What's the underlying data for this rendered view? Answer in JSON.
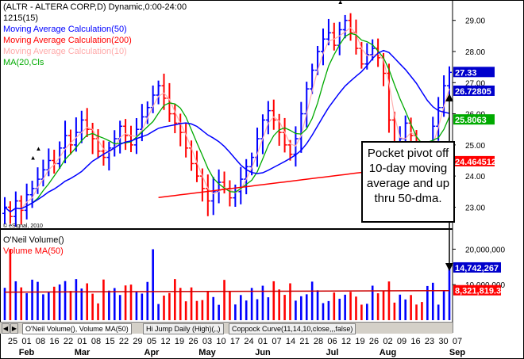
{
  "header": {
    "title": "(ALTR - ALTERA CORP,D) Dynamic,0:00-24:00",
    "interval": "1215(15)",
    "studies": [
      {
        "label": "Moving Average Calculation(50)",
        "color": "#0000ff"
      },
      {
        "label": "Moving Average Calculation(200)",
        "color": "#ff0000"
      },
      {
        "label": "Moving Average Calculation(10)",
        "color": "#ffaaaa"
      },
      {
        "label": "MA(20,Cls",
        "color": "#00aa00"
      }
    ],
    "copyright": "© eSignal, 2010"
  },
  "volume_header": {
    "studies": [
      {
        "label": "O'Neil Volume()",
        "color": "#000000"
      },
      {
        "label": "Volume MA(50)",
        "color": "#ff0000"
      }
    ]
  },
  "annotation": {
    "lines": [
      "Pocket pivot off",
      "10-day moving",
      "average and up",
      "thru 50-dma."
    ]
  },
  "tabs": [
    "O'Neil Volume(), Volume MA(50)",
    "Hi Jump Daily (High)(,,)",
    "Coppock Curve(11,14,10,close,,,false)"
  ],
  "colors": {
    "up": "#0000ff",
    "down": "#ff0000",
    "ma50": "#0000ff",
    "ma200": "#ff0000",
    "ma10": "#ffb0b0",
    "ma20": "#00aa00"
  },
  "chart_data": [
    {
      "type": "line",
      "title": "(ALTR - ALTERA CORP,D) Dynamic,0:00-24:00",
      "price_bar_style": "OHLC",
      "ylim": [
        22.4,
        29.4
      ],
      "y_ticks": [
        22.0,
        23.0,
        24.0,
        25.0,
        26.0,
        27.0,
        28.0,
        29.0
      ],
      "y_tick_labels": [
        "22.00",
        "23.00",
        "24.00",
        "25.00",
        "26.00",
        "27.00",
        "28.00",
        "29.00"
      ],
      "grid": false,
      "x_day_labels": [
        "25",
        "01",
        "08",
        "16",
        "22",
        "01",
        "08",
        "15",
        "22",
        "29",
        "05",
        "12",
        "19",
        "26",
        "03",
        "10",
        "17",
        "24",
        "01",
        "07",
        "14",
        "21",
        "28",
        "06",
        "12",
        "19",
        "26",
        "02",
        "09",
        "16",
        "23",
        "30",
        "07"
      ],
      "x_month_labels": [
        "Feb",
        "Mar",
        "Apr",
        "May",
        "Jun",
        "Jul",
        "Aug",
        "Sep"
      ],
      "close_series": [
        23.0,
        22.7,
        23.2,
        22.9,
        23.4,
        23.6,
        23.9,
        24.2,
        24.5,
        24.4,
        24.9,
        25.3,
        25.0,
        25.4,
        25.8,
        25.5,
        25.2,
        24.8,
        24.6,
        24.9,
        25.2,
        25.6,
        25.3,
        25.0,
        25.5,
        25.9,
        26.2,
        26.6,
        26.9,
        26.5,
        26.0,
        25.7,
        25.4,
        24.9,
        24.4,
        24.0,
        23.6,
        23.2,
        23.5,
        23.8,
        23.6,
        23.3,
        23.5,
        23.9,
        24.3,
        24.6,
        25.2,
        25.8,
        26.1,
        25.8,
        25.4,
        25.0,
        24.7,
        25.2,
        26.0,
        26.8,
        27.4,
        28.0,
        28.4,
        28.6,
        28.2,
        28.7,
        29.0,
        28.6,
        28.1,
        27.6,
        27.9,
        28.1,
        27.8,
        27.3,
        25.8,
        24.7,
        25.2,
        25.7,
        25.3,
        24.9,
        24.5,
        24.9,
        25.6,
        26.2,
        26.9,
        27.33
      ],
      "last_labels": {
        "price": "27.33",
        "ma50": "26.72805",
        "ma20": "25.8063",
        "ma200": "24.464512"
      },
      "series": [
        {
          "name": "Moving Average Calculation(50)",
          "last": 26.72805
        },
        {
          "name": "Moving Average Calculation(200)",
          "last": 24.464512
        },
        {
          "name": "Moving Average Calculation(10)"
        },
        {
          "name": "MA(20,Cls",
          "last": 25.8063
        }
      ],
      "annotations": [
        "Pocket pivot off 10-day moving average and up thru 50-dma."
      ]
    },
    {
      "type": "bar",
      "title": "O'Neil Volume()",
      "ylim": [
        0,
        25000000
      ],
      "y_ticks": [
        10000000,
        20000000
      ],
      "y_tick_labels": [
        "10,000,000",
        "20,000,000"
      ],
      "series": [
        {
          "name": "O'Neil Volume()",
          "last": 14742267
        },
        {
          "name": "Volume MA(50)",
          "last": 8321819.3
        }
      ],
      "last_labels": {
        "volume": "14,742,267",
        "ma": "8,321,819.3"
      }
    }
  ]
}
